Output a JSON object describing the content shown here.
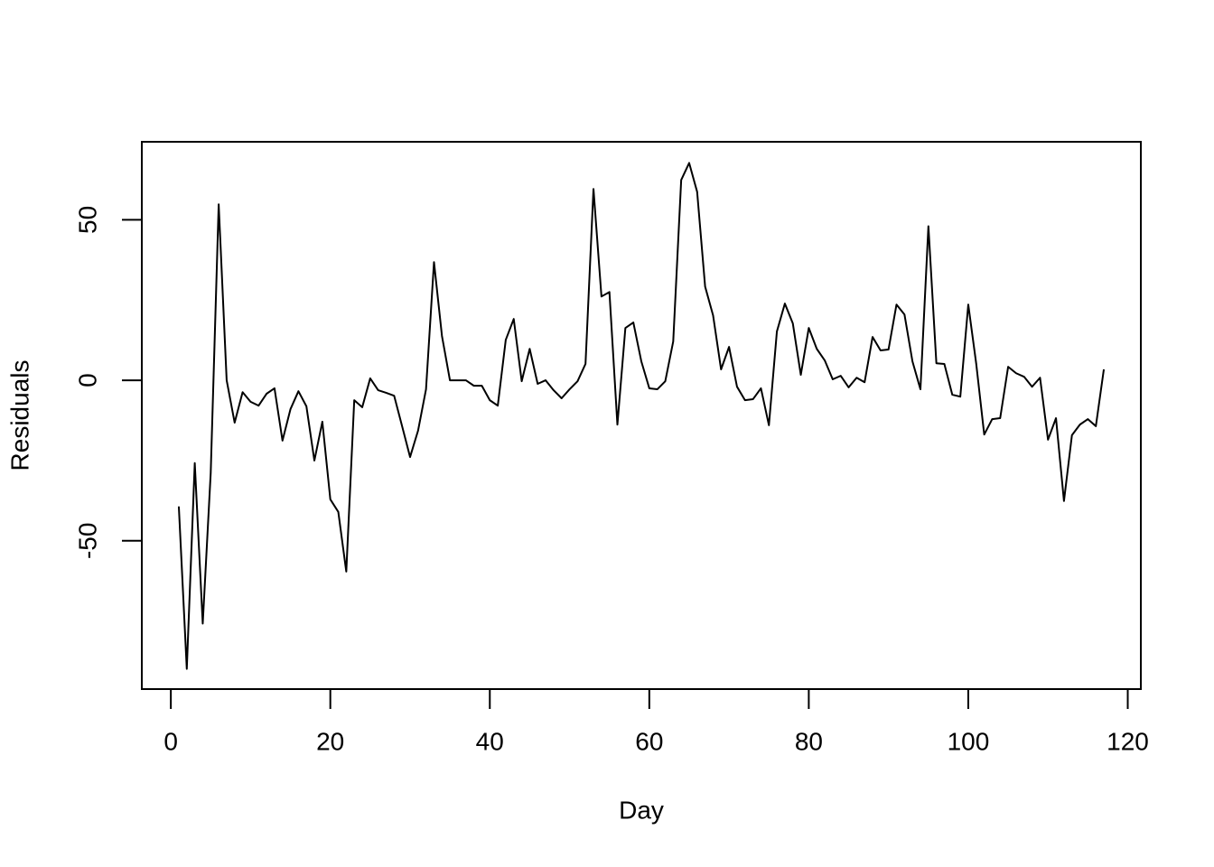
{
  "chart_data": {
    "type": "line",
    "x_label": "Day",
    "y_label": "Residuals",
    "x": [
      1,
      2,
      3,
      4,
      5,
      6,
      7,
      8,
      9,
      10,
      11,
      12,
      13,
      14,
      15,
      16,
      17,
      18,
      19,
      20,
      21,
      22,
      23,
      24,
      25,
      26,
      27,
      28,
      29,
      30,
      31,
      32,
      33,
      34,
      35,
      36,
      37,
      38,
      39,
      40,
      41,
      42,
      43,
      44,
      45,
      46,
      47,
      48,
      49,
      50,
      51,
      52,
      53,
      54,
      55,
      56,
      57,
      58,
      59,
      60,
      61,
      62,
      63,
      64,
      65,
      66,
      67,
      68,
      69,
      70,
      71,
      72,
      73,
      74,
      75,
      76,
      77,
      78,
      79,
      80,
      81,
      82,
      83,
      84,
      85,
      86,
      87,
      88,
      89,
      90,
      91,
      92,
      93,
      94,
      95,
      96,
      97,
      98,
      99,
      100,
      101,
      102,
      103,
      104,
      105,
      106,
      107,
      108,
      109,
      110,
      111,
      112,
      113,
      114,
      115,
      116,
      117
    ],
    "series": [
      {
        "color": "#000000",
        "values": [
          -39.3,
          -89.9,
          -25.8,
          -75.8,
          -28.9,
          54.8,
          0,
          -13.2,
          -3.7,
          -6.7,
          -7.9,
          -4.2,
          -2.5,
          -18.8,
          -9,
          -3.4,
          -8.1,
          -25,
          -12.9,
          -37.1,
          -41,
          -59.6,
          -6.2,
          -8.4,
          0.6,
          -3.1,
          -3.9,
          -4.8,
          -14.3,
          -23.9,
          -15.7,
          -2.8,
          36.8,
          13.8,
          0,
          0,
          0,
          -1.7,
          -1.7,
          -6.2,
          -7.9,
          12.6,
          19.1,
          -0.3,
          9.8,
          -1.1,
          0,
          -3.1,
          -5.6,
          -2.8,
          -0.3,
          5.1,
          59.6,
          26.1,
          27.5,
          -13.8,
          16.3,
          18,
          5.9,
          -2.5,
          -2.8,
          -0.3,
          12.1,
          62.4,
          67.7,
          58.7,
          29.2,
          20.2,
          3.4,
          10.4,
          -2,
          -6.2,
          -5.9,
          -2.5,
          -14,
          15.2,
          23.9,
          17.7,
          1.7,
          16.3,
          9.8,
          6.2,
          0.3,
          1.4,
          -2.2,
          0.8,
          -0.6,
          13.5,
          9.3,
          9.6,
          23.6,
          20.5,
          5.9,
          -2.8,
          48,
          5.3,
          5.1,
          -4.5,
          -5.1,
          23.6,
          5.1,
          -16.9,
          -12.1,
          -11.8,
          4.2,
          2.2,
          1.1,
          -2,
          0.8,
          -18.5,
          -11.8,
          -37.6,
          -17.1,
          -13.8,
          -12.1,
          -14.3,
          3.4
        ]
      }
    ],
    "xlim": [
      -3.64,
      121.64
    ],
    "ylim": [
      -96.2,
      74.3
    ],
    "xticks": [
      0,
      20,
      40,
      60,
      80,
      100,
      120
    ],
    "yticks": [
      -50,
      0,
      50
    ],
    "grid": false
  }
}
